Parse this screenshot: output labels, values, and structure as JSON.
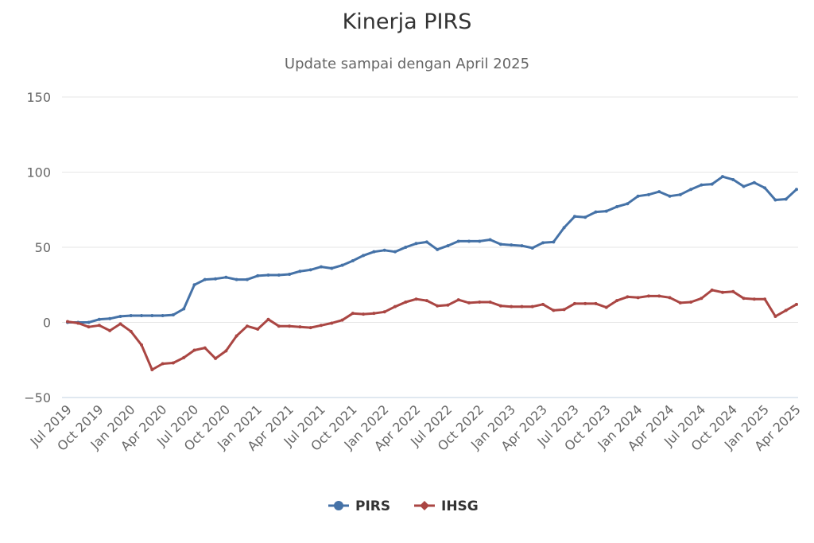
{
  "chart_data": {
    "type": "line",
    "title": "Kinerja PIRS",
    "subtitle": "Update sampai dengan April 2025",
    "xlabel": "",
    "ylabel": "",
    "ylim": [
      -50,
      150
    ],
    "yticks": [
      -50,
      0,
      50,
      100,
      150
    ],
    "grid": true,
    "legend_position": "bottom",
    "x": [
      "Jul 2019",
      "Aug 2019",
      "Sep 2019",
      "Oct 2019",
      "Nov 2019",
      "Dec 2019",
      "Jan 2020",
      "Feb 2020",
      "Mar 2020",
      "Apr 2020",
      "May 2020",
      "Jun 2020",
      "Jul 2020",
      "Aug 2020",
      "Sep 2020",
      "Oct 2020",
      "Nov 2020",
      "Dec 2020",
      "Jan 2021",
      "Feb 2021",
      "Mar 2021",
      "Apr 2021",
      "May 2021",
      "Jun 2021",
      "Jul 2021",
      "Aug 2021",
      "Sep 2021",
      "Oct 2021",
      "Nov 2021",
      "Dec 2021",
      "Jan 2022",
      "Feb 2022",
      "Mar 2022",
      "Apr 2022",
      "May 2022",
      "Jun 2022",
      "Jul 2022",
      "Aug 2022",
      "Sep 2022",
      "Oct 2022",
      "Nov 2022",
      "Dec 2022",
      "Jan 2023",
      "Feb 2023",
      "Mar 2023",
      "Apr 2023",
      "May 2023",
      "Jun 2023",
      "Jul 2023",
      "Aug 2023",
      "Sep 2023",
      "Oct 2023",
      "Nov 2023",
      "Dec 2023",
      "Jan 2024",
      "Feb 2024",
      "Mar 2024",
      "Apr 2024",
      "May 2024",
      "Jun 2024",
      "Jul 2024",
      "Aug 2024",
      "Sep 2024",
      "Oct 2024",
      "Nov 2024",
      "Dec 2024",
      "Jan 2025",
      "Feb 2025",
      "Mar 2025",
      "Apr 2025"
    ],
    "x_tick_labels": [
      "Jul 2019",
      "Oct 2019",
      "Jan 2020",
      "Apr 2020",
      "Jul 2020",
      "Oct 2020",
      "Jan 2021",
      "Apr 2021",
      "Jul 2021",
      "Oct 2021",
      "Jan 2022",
      "Apr 2022",
      "Jul 2022",
      "Oct 2022",
      "Jan 2023",
      "Apr 2023",
      "Jul 2023",
      "Oct 2023",
      "Jan 2024",
      "Apr 2024",
      "Jul 2024",
      "Oct 2024",
      "Jan 2025",
      "Apr 2025"
    ],
    "series": [
      {
        "name": "PIRS",
        "color": "#4572A7",
        "marker": "circle",
        "values": [
          0,
          0,
          0,
          2,
          2.5,
          4,
          4.5,
          4.5,
          4.5,
          4.5,
          5,
          9,
          25,
          28.5,
          29,
          30,
          28.5,
          28.5,
          31,
          31.5,
          31.5,
          32,
          34,
          35,
          37,
          36,
          38,
          41,
          44.5,
          47,
          48,
          47,
          50,
          52.5,
          53.5,
          48.5,
          51,
          54,
          54,
          54,
          55,
          52,
          51.5,
          51,
          49.5,
          53,
          53.5,
          63,
          70.5,
          70,
          73.5,
          74,
          77,
          79,
          84,
          85,
          87,
          84,
          85,
          88.5,
          91.5,
          92,
          97,
          95,
          90.5,
          93,
          89.5,
          81.5,
          82,
          88.5
        ]
      },
      {
        "name": "IHSG",
        "color": "#AA4643",
        "marker": "diamond",
        "values": [
          0.5,
          -0.5,
          -3,
          -2,
          -5.5,
          -1,
          -6,
          -15,
          -31.5,
          -27.5,
          -27,
          -23.5,
          -18.5,
          -17,
          -24,
          -19,
          -9,
          -2.5,
          -4.5,
          2,
          -2.5,
          -2.5,
          -3,
          -3.5,
          -2,
          -0.5,
          1.5,
          6,
          5.5,
          6,
          7,
          10.5,
          13.5,
          15.5,
          14.5,
          11,
          11.5,
          15,
          13,
          13.5,
          13.5,
          11,
          10.5,
          10.5,
          10.5,
          12,
          8,
          8.5,
          12.5,
          12.5,
          12.5,
          10,
          14.5,
          17,
          16.5,
          17.5,
          17.5,
          16.5,
          13,
          13.5,
          16,
          21.5,
          20,
          20.5,
          16,
          15.5,
          15.5,
          4,
          8,
          12
        ]
      }
    ]
  }
}
